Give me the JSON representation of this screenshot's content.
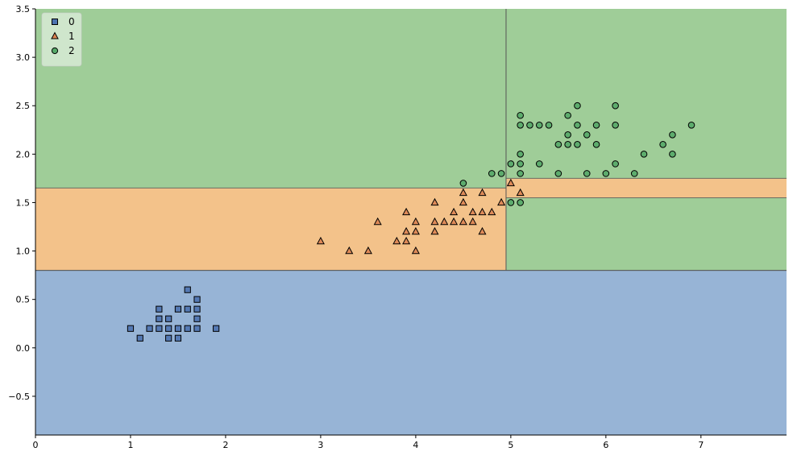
{
  "chart_data": {
    "type": "scatter",
    "title": "",
    "xlabel": "",
    "ylabel": "",
    "xlim": [
      0,
      7.9
    ],
    "ylim": [
      -0.9,
      3.5
    ],
    "x_ticks": [
      0,
      1,
      2,
      3,
      4,
      5,
      6,
      7
    ],
    "x_tick_labels": [
      "0",
      "1",
      "2",
      "3",
      "4",
      "5",
      "6",
      "7"
    ],
    "y_ticks": [
      -0.5,
      0.0,
      0.5,
      1.0,
      1.5,
      2.0,
      2.5,
      3.0,
      3.5
    ],
    "y_tick_labels": [
      "−0.5",
      "0.0",
      "0.5",
      "1.0",
      "1.5",
      "2.0",
      "2.5",
      "3.0",
      "3.5"
    ],
    "grid": false,
    "legend_position": "top-left",
    "decision_regions": [
      {
        "class": "0",
        "color": "#97b4d6",
        "rects": [
          [
            0,
            -0.9,
            7.9,
            0.8
          ]
        ]
      },
      {
        "class": "1",
        "color": "#f3c28a",
        "rects": [
          [
            0,
            0.8,
            4.95,
            1.65
          ],
          [
            4.95,
            1.55,
            7.9,
            1.75
          ]
        ]
      },
      {
        "class": "2",
        "color": "#9fcd98",
        "rects": [
          [
            0,
            1.65,
            4.95,
            3.5
          ],
          [
            4.95,
            1.75,
            7.9,
            3.5
          ],
          [
            4.95,
            0.8,
            7.9,
            1.55
          ]
        ]
      }
    ],
    "series": [
      {
        "name": "0",
        "marker": "square",
        "color": "#4c72b0",
        "points": [
          [
            1.0,
            0.2
          ],
          [
            1.1,
            0.1
          ],
          [
            1.2,
            0.2
          ],
          [
            1.3,
            0.2
          ],
          [
            1.3,
            0.3
          ],
          [
            1.3,
            0.4
          ],
          [
            1.4,
            0.1
          ],
          [
            1.4,
            0.2
          ],
          [
            1.4,
            0.3
          ],
          [
            1.5,
            0.1
          ],
          [
            1.5,
            0.2
          ],
          [
            1.5,
            0.4
          ],
          [
            1.6,
            0.2
          ],
          [
            1.6,
            0.4
          ],
          [
            1.6,
            0.6
          ],
          [
            1.7,
            0.2
          ],
          [
            1.7,
            0.3
          ],
          [
            1.7,
            0.4
          ],
          [
            1.7,
            0.5
          ],
          [
            1.9,
            0.2
          ]
        ]
      },
      {
        "name": "1",
        "marker": "triangle",
        "color": "#dd8452",
        "points": [
          [
            3.0,
            1.1
          ],
          [
            3.3,
            1.0
          ],
          [
            3.5,
            1.0
          ],
          [
            3.6,
            1.3
          ],
          [
            3.8,
            1.1
          ],
          [
            3.9,
            1.1
          ],
          [
            3.9,
            1.2
          ],
          [
            3.9,
            1.4
          ],
          [
            4.0,
            1.0
          ],
          [
            4.0,
            1.2
          ],
          [
            4.0,
            1.3
          ],
          [
            4.2,
            1.2
          ],
          [
            4.2,
            1.3
          ],
          [
            4.2,
            1.5
          ],
          [
            4.3,
            1.3
          ],
          [
            4.4,
            1.3
          ],
          [
            4.4,
            1.4
          ],
          [
            4.5,
            1.3
          ],
          [
            4.5,
            1.5
          ],
          [
            4.5,
            1.6
          ],
          [
            4.6,
            1.3
          ],
          [
            4.6,
            1.4
          ],
          [
            4.7,
            1.2
          ],
          [
            4.7,
            1.4
          ],
          [
            4.7,
            1.6
          ],
          [
            4.8,
            1.4
          ],
          [
            4.9,
            1.5
          ],
          [
            5.0,
            1.7
          ],
          [
            5.1,
            1.6
          ]
        ]
      },
      {
        "name": "2",
        "marker": "circle",
        "color": "#55a868",
        "points": [
          [
            4.5,
            1.7
          ],
          [
            4.8,
            1.8
          ],
          [
            4.9,
            1.8
          ],
          [
            5.0,
            1.5
          ],
          [
            5.0,
            1.9
          ],
          [
            5.1,
            1.5
          ],
          [
            5.1,
            1.8
          ],
          [
            5.1,
            1.9
          ],
          [
            5.1,
            2.0
          ],
          [
            5.1,
            2.3
          ],
          [
            5.1,
            2.4
          ],
          [
            5.2,
            2.3
          ],
          [
            5.3,
            1.9
          ],
          [
            5.3,
            2.3
          ],
          [
            5.4,
            2.3
          ],
          [
            5.5,
            1.8
          ],
          [
            5.5,
            2.1
          ],
          [
            5.6,
            2.1
          ],
          [
            5.6,
            2.2
          ],
          [
            5.6,
            2.4
          ],
          [
            5.7,
            2.1
          ],
          [
            5.7,
            2.3
          ],
          [
            5.7,
            2.5
          ],
          [
            5.8,
            1.8
          ],
          [
            5.8,
            2.2
          ],
          [
            5.9,
            2.1
          ],
          [
            5.9,
            2.3
          ],
          [
            6.0,
            1.8
          ],
          [
            6.1,
            1.9
          ],
          [
            6.1,
            2.3
          ],
          [
            6.1,
            2.5
          ],
          [
            6.3,
            1.8
          ],
          [
            6.4,
            2.0
          ],
          [
            6.6,
            2.1
          ],
          [
            6.7,
            2.0
          ],
          [
            6.7,
            2.2
          ],
          [
            6.9,
            2.3
          ]
        ]
      }
    ]
  }
}
